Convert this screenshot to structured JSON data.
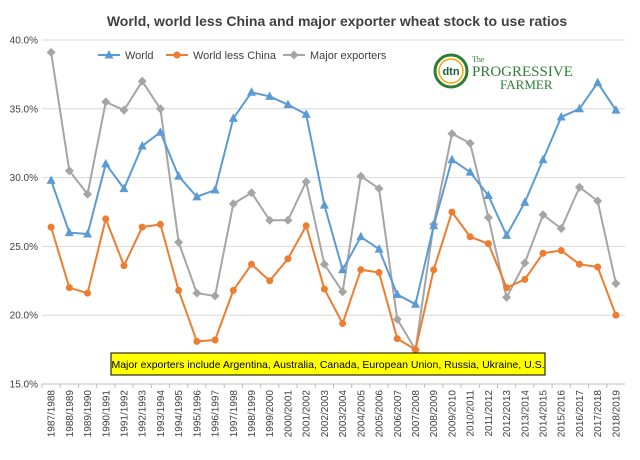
{
  "chart_data": {
    "type": "line",
    "title": "World, world less China and major exporter wheat stock to use ratios",
    "categories": [
      "1987/1988",
      "1988/1989",
      "1989/1990",
      "1990/1991",
      "1991/1992",
      "1992/1993",
      "1993/1994",
      "1994/1995",
      "1995/1996",
      "1996/1997",
      "1997/1998",
      "1998/1999",
      "1999/2000",
      "2000/2001",
      "2001/2002",
      "2002/2003",
      "2003/2004",
      "2004/2005",
      "2005/2006",
      "2006/2007",
      "2007/2008",
      "2008/2009",
      "2009/2010",
      "2010/2011",
      "2011/2012",
      "2012/2013",
      "2013/2014",
      "2014/2015",
      "2015/2016",
      "2016/2017",
      "2017/2018",
      "2018/2019"
    ],
    "ylim": [
      15,
      40
    ],
    "y_ticks": [
      "15.0%",
      "20.0%",
      "25.0%",
      "30.0%",
      "35.0%",
      "40.0%"
    ],
    "grid": true,
    "legend_position": "top-left",
    "series": [
      {
        "name": "World",
        "color": "#5b9bd5",
        "marker": "triangle",
        "values": [
          29.8,
          26.0,
          25.9,
          31.0,
          29.2,
          32.3,
          33.3,
          30.1,
          28.6,
          29.1,
          34.3,
          36.2,
          35.9,
          35.3,
          34.6,
          28.0,
          23.3,
          25.7,
          24.8,
          21.5,
          20.8,
          26.5,
          31.3,
          30.4,
          28.7,
          25.8,
          28.2,
          31.3,
          34.4,
          35.0,
          36.9,
          34.9
        ]
      },
      {
        "name": "World less China",
        "color": "#ed7d31",
        "marker": "circle",
        "values": [
          26.4,
          22.0,
          21.6,
          27.0,
          23.6,
          26.4,
          26.6,
          21.8,
          18.1,
          18.2,
          21.8,
          23.7,
          22.5,
          24.1,
          26.5,
          21.9,
          19.4,
          23.3,
          23.1,
          18.3,
          17.5,
          23.3,
          27.5,
          25.7,
          25.2,
          22.0,
          22.6,
          24.5,
          24.7,
          23.7,
          23.5,
          20.0
        ]
      },
      {
        "name": "Major exporters",
        "color": "#a5a5a5",
        "marker": "diamond",
        "values": [
          39.1,
          30.5,
          28.8,
          35.5,
          34.9,
          37.0,
          35.0,
          25.3,
          21.6,
          21.4,
          28.1,
          28.9,
          26.9,
          26.9,
          29.7,
          23.7,
          21.7,
          30.1,
          29.2,
          19.7,
          17.5,
          26.6,
          33.2,
          32.5,
          27.1,
          21.3,
          23.8,
          27.3,
          26.3,
          29.3,
          28.3,
          22.3
        ]
      }
    ],
    "annotation": "Major exporters include Argentina, Australia, Canada, European Union, Russia, Ukraine, U.S."
  },
  "logo": {
    "dtn": "dtn",
    "name_line1": "PROGRESSIVE",
    "name_line2": "FARMER",
    "prefix": "The"
  }
}
